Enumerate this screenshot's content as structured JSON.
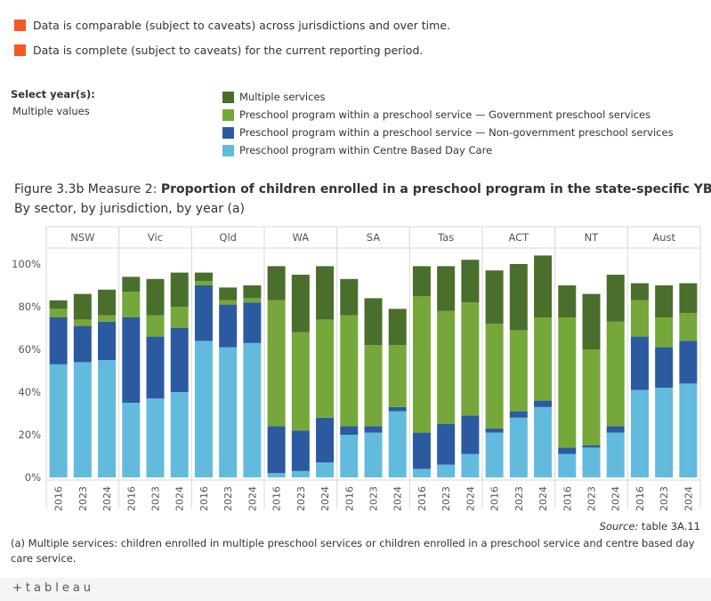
{
  "flags": [
    {
      "text": "Data is comparable (subject to caveats) across jurisdictions and over time.",
      "color": "#f15a22"
    },
    {
      "text": "Data is complete (subject to caveats) for the current reporting period.",
      "color": "#f15a22"
    }
  ],
  "filter": {
    "label": "Select year(s):",
    "value": "Multiple values"
  },
  "title_prefix": "Figure 3.3b Measure 2: ",
  "title_main": "Proportion of children enrolled in a preschool program in the state-specific YBFS",
  "subtitle": "By sector, by jurisdiction, by year (a)",
  "source_label": "Source:",
  "source_value": " table 3A.11",
  "footnote": "(a) Multiple services: children enrolled in multiple preschool services or children enrolled in a preschool service and centre based day care service.",
  "logo": "+tableau",
  "chart_data": {
    "type": "bar",
    "stacked": true,
    "ylim": [
      0,
      100
    ],
    "yticks": [
      0,
      20,
      40,
      60,
      80,
      100
    ],
    "yticklabels": [
      "0%",
      "20%",
      "40%",
      "60%",
      "80%",
      "100%"
    ],
    "grid": false,
    "legend_position": "top",
    "panels": [
      "NSW",
      "Vic",
      "Qld",
      "WA",
      "SA",
      "Tas",
      "ACT",
      "NT",
      "Aust"
    ],
    "years": [
      "2016",
      "2023",
      "2024"
    ],
    "series": [
      {
        "name": "Preschool program within Centre Based Day Care",
        "color": "#62bbdc",
        "values": [
          [
            53,
            54,
            55
          ],
          [
            35,
            37,
            40
          ],
          [
            64,
            61,
            63
          ],
          [
            2,
            3,
            7
          ],
          [
            20,
            21,
            31
          ],
          [
            4,
            6,
            11
          ],
          [
            21,
            28,
            33
          ],
          [
            11,
            14,
            21
          ],
          [
            41,
            42,
            44
          ]
        ]
      },
      {
        "name": "Preschool program within a preschool service — Non-government preschool services",
        "color": "#2b5aa0",
        "values": [
          [
            22,
            17,
            18
          ],
          [
            40,
            29,
            30
          ],
          [
            26,
            20,
            19
          ],
          [
            22,
            19,
            21
          ],
          [
            4,
            3,
            2
          ],
          [
            17,
            19,
            18
          ],
          [
            2,
            3,
            3
          ],
          [
            3,
            1,
            3
          ],
          [
            25,
            19,
            20
          ]
        ]
      },
      {
        "name": "Preschool program within a preschool service — Government preschool services",
        "color": "#76a73a",
        "values": [
          [
            4,
            3,
            3
          ],
          [
            12,
            10,
            10
          ],
          [
            2,
            2,
            2
          ],
          [
            59,
            46,
            46
          ],
          [
            52,
            38,
            29
          ],
          [
            64,
            53,
            53
          ],
          [
            49,
            38,
            39
          ],
          [
            61,
            45,
            49
          ],
          [
            17,
            14,
            13
          ]
        ]
      },
      {
        "name": "Multiple services",
        "color": "#4a6e2c",
        "values": [
          [
            4,
            12,
            12
          ],
          [
            7,
            17,
            16
          ],
          [
            4,
            6,
            6
          ],
          [
            16,
            27,
            25
          ],
          [
            17,
            22,
            17
          ],
          [
            14,
            21,
            20
          ],
          [
            25,
            31,
            29
          ],
          [
            15,
            26,
            22
          ],
          [
            8,
            15,
            14
          ]
        ]
      }
    ]
  }
}
